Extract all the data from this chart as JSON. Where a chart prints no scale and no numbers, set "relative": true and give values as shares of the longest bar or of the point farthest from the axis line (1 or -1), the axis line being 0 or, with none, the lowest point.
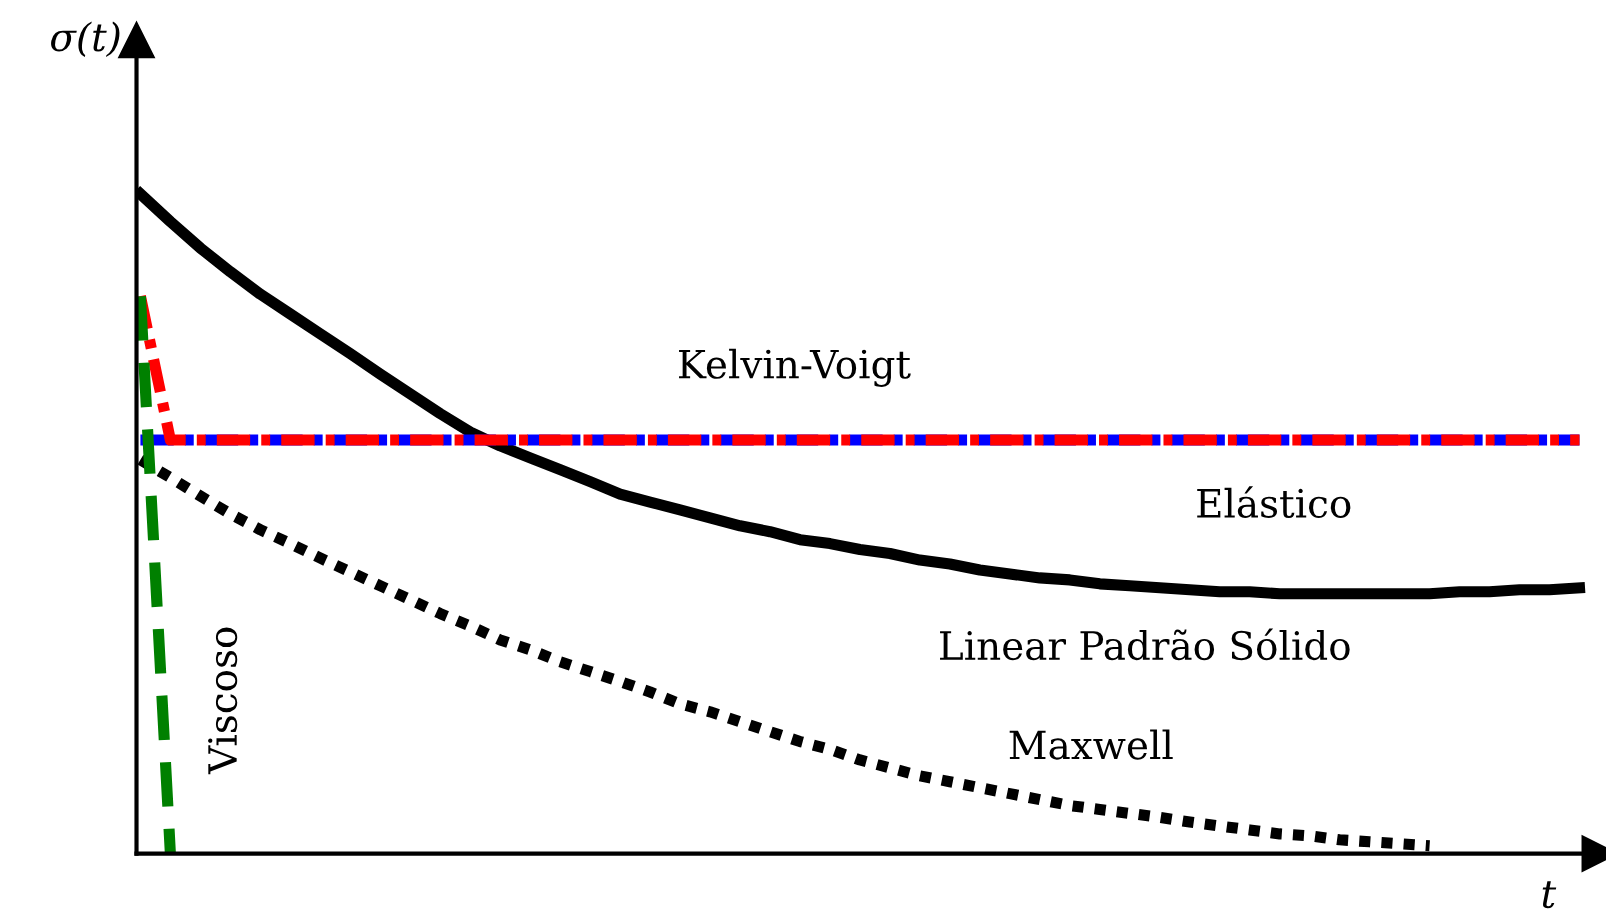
{
  "chart_data": {
    "type": "line",
    "relative": true,
    "xlabel": "t",
    "ylabel": "σ(t)",
    "tick_labels": false,
    "legend": false,
    "categories": [
      null,
      null,
      null,
      null,
      null,
      null,
      null,
      null,
      null,
      null,
      null,
      null,
      null,
      null,
      null,
      null,
      null,
      null,
      null,
      null,
      null,
      null,
      null,
      null,
      null,
      null,
      null,
      null,
      null,
      null,
      null,
      null,
      null,
      null,
      null,
      null,
      null,
      null,
      null,
      null,
      null,
      null,
      null,
      null,
      null,
      null,
      null,
      null,
      null
    ],
    "series": [
      {
        "name": "Linear Padrão Sólido",
        "color": "#000000",
        "line_style": "solid",
        "values": [
          1.0,
          0.958,
          0.918,
          0.882,
          0.848,
          0.818,
          0.788,
          0.758,
          0.727,
          0.697,
          0.667,
          0.639,
          0.618,
          0.6,
          0.582,
          0.564,
          0.545,
          0.533,
          0.521,
          0.509,
          0.497,
          0.488,
          0.476,
          0.47,
          0.461,
          0.455,
          0.445,
          0.439,
          0.43,
          0.424,
          0.418,
          0.415,
          0.409,
          0.406,
          0.403,
          0.4,
          0.397,
          0.397,
          0.394,
          0.394,
          0.394,
          0.394,
          0.394,
          0.394,
          0.397,
          0.397,
          0.4,
          0.4,
          0.403
        ]
      },
      {
        "name": "Maxwell",
        "color": "#000000",
        "line_style": "dotted",
        "values": [
          0.597,
          0.57,
          0.542,
          0.515,
          0.491,
          0.47,
          0.448,
          0.427,
          0.406,
          0.385,
          0.364,
          0.345,
          0.324,
          0.309,
          0.291,
          0.276,
          0.261,
          0.245,
          0.227,
          0.215,
          0.2,
          0.185,
          0.17,
          0.158,
          0.142,
          0.13,
          0.118,
          0.109,
          0.1,
          0.091,
          0.082,
          0.073,
          0.067,
          0.061,
          0.055,
          0.048,
          0.042,
          0.036,
          0.03,
          0.027,
          0.021,
          0.018,
          0.015,
          0.012,
          null,
          null,
          null,
          null,
          null
        ]
      },
      {
        "name": "Elástico",
        "color": "#0000ff",
        "line_style": "dashdot",
        "values": [
          0.627,
          0.627,
          0.627,
          0.627,
          0.627,
          0.627,
          0.627,
          0.627,
          0.627,
          0.627,
          0.627,
          0.627,
          0.627,
          0.627,
          0.627,
          0.627,
          0.627,
          0.627,
          0.627,
          0.627,
          0.627,
          0.627,
          0.627,
          0.627,
          0.627,
          0.627,
          0.627,
          0.627,
          0.627,
          0.627,
          0.627,
          0.627,
          0.627,
          0.627,
          0.627,
          0.627,
          0.627,
          0.627,
          0.627,
          0.627,
          0.627,
          0.627,
          0.627,
          0.627,
          0.627,
          0.627,
          0.627,
          0.627,
          0.627
        ]
      },
      {
        "name": "Kelvin-Voigt",
        "color": "#ff0000",
        "line_style": "dashdot",
        "values": [
          0.845,
          0.627,
          0.627,
          0.627,
          0.627,
          0.627,
          0.627,
          0.627,
          0.627,
          0.627,
          0.627,
          0.627,
          0.627,
          0.627,
          0.627,
          0.627,
          0.627,
          0.627,
          0.627,
          0.627,
          0.627,
          0.627,
          0.627,
          0.627,
          0.627,
          0.627,
          0.627,
          0.627,
          0.627,
          0.627,
          0.627,
          0.627,
          0.627,
          0.627,
          0.627,
          0.627,
          0.627,
          0.627,
          0.627,
          0.627,
          0.627,
          0.627,
          0.627,
          0.627,
          0.627,
          0.627,
          0.627,
          0.627,
          0.627
        ]
      },
      {
        "name": "Viscoso",
        "color": "#008000",
        "line_style": "dashed",
        "values": [
          0.845,
          0.0,
          null,
          null,
          null,
          null,
          null,
          null,
          null,
          null,
          null,
          null,
          null,
          null,
          null,
          null,
          null,
          null,
          null,
          null,
          null,
          null,
          null,
          null,
          null,
          null,
          null,
          null,
          null,
          null,
          null,
          null,
          null,
          null,
          null,
          null,
          null,
          null,
          null,
          null,
          null,
          null,
          null,
          null,
          null,
          null,
          null,
          null,
          null
        ]
      }
    ]
  }
}
